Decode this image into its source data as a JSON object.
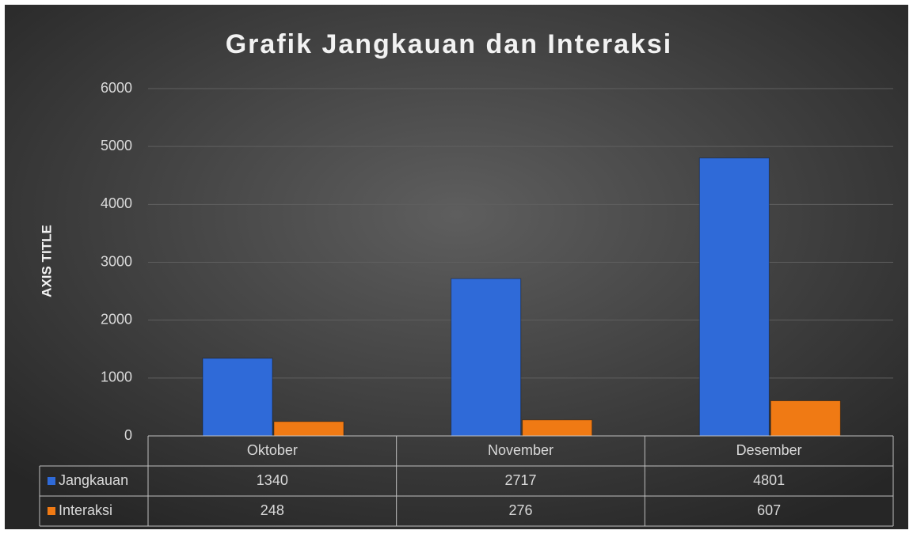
{
  "chart_data": {
    "type": "bar",
    "title": "Grafik Jangkauan dan Interaksi",
    "y_axis_label": "AXIS TITLE",
    "categories": [
      "Oktober",
      "November",
      "Desember"
    ],
    "series": [
      {
        "name": "Jangkauan",
        "color": "#2f6ad8",
        "values": [
          1340,
          2717,
          4801
        ]
      },
      {
        "name": "Interaksi",
        "color": "#f07a14",
        "values": [
          248,
          276,
          607
        ]
      }
    ],
    "ylim": [
      0,
      6000
    ],
    "yticks": [
      0,
      1000,
      2000,
      3000,
      4000,
      5000,
      6000
    ],
    "grid": true,
    "data_table": true
  }
}
